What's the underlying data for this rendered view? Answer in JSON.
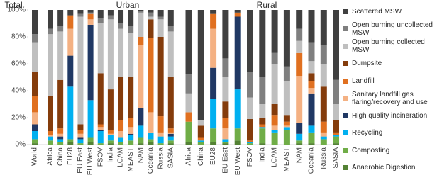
{
  "chart_data": {
    "type": "bar",
    "stacked": true,
    "ylim": [
      0,
      100
    ],
    "yticks": [
      {
        "value": 0,
        "label": "0%"
      },
      {
        "value": 20,
        "label": "20%"
      },
      {
        "value": 40,
        "label": "40%"
      },
      {
        "value": 60,
        "label": "60%"
      },
      {
        "value": 80,
        "label": "80%"
      },
      {
        "value": 100,
        "label": "100%"
      }
    ],
    "series": [
      {
        "name": "Anaerobic Digestion",
        "color": "#548235"
      },
      {
        "name": "Composting",
        "color": "#70ad47"
      },
      {
        "name": "Recycling",
        "color": "#00b0f0"
      },
      {
        "name": "High quality incineration",
        "color": "#203864"
      },
      {
        "name": "Sanitary landfill gas flaring/recovery and use",
        "color": "#f4b183"
      },
      {
        "name": "Landfill",
        "color": "#e07020"
      },
      {
        "name": "Dumpsite",
        "color": "#843c0c"
      },
      {
        "name": "Open burning collected MSW",
        "color": "#bfbfbf"
      },
      {
        "name": "Open burning uncollected MSW",
        "color": "#7f7f7f"
      },
      {
        "name": "Scattered MSW",
        "color": "#404040"
      }
    ],
    "groups": [
      {
        "name": "Total",
        "categories": [
          "World"
        ],
        "values": [
          [
            1
          ],
          [
            3
          ],
          [
            6
          ],
          [
            5
          ],
          [
            9
          ],
          [
            12
          ],
          [
            18
          ],
          [
            22
          ],
          [
            6
          ],
          [
            18
          ]
        ]
      },
      {
        "name": "Urban",
        "categories": [
          "Africa",
          "China",
          "EU28",
          "EU East",
          "EU West",
          "FSOV",
          "India",
          "LCAM",
          "MEAST",
          "NAM",
          "Oceania",
          "Russia",
          "SASIA"
        ],
        "values": [
          [
            0,
            0,
            2,
            0,
            2,
            0,
            1,
            0,
            0,
            1,
            2,
            0,
            1
          ],
          [
            3,
            2,
            2,
            1,
            3,
            1,
            2,
            2,
            3,
            4,
            2,
            1,
            2
          ],
          [
            3,
            2,
            39,
            3,
            28,
            9,
            4,
            3,
            4,
            9,
            5,
            5,
            3
          ],
          [
            0,
            2,
            23,
            1,
            56,
            1,
            0,
            0,
            1,
            13,
            0,
            0,
            2
          ],
          [
            1,
            2,
            20,
            3,
            4,
            2,
            1,
            5,
            5,
            47,
            15,
            3,
            1
          ],
          [
            3,
            4,
            10,
            3,
            4,
            2,
            3,
            8,
            7,
            6,
            55,
            12,
            3
          ],
          [
            26,
            36,
            0,
            4,
            0,
            38,
            30,
            32,
            30,
            0,
            14,
            59,
            38
          ],
          [
            46,
            36,
            0,
            80,
            0,
            37,
            52,
            36,
            33,
            18,
            2,
            13,
            34
          ],
          [
            4,
            4,
            0,
            2,
            1,
            4,
            3,
            4,
            5,
            1,
            3,
            2,
            4
          ],
          [
            14,
            12,
            4,
            3,
            2,
            6,
            4,
            10,
            12,
            1,
            2,
            5,
            12
          ]
        ]
      },
      {
        "name": "Rural",
        "categories": [
          "Africa",
          "China",
          "EU28",
          "EU East",
          "EU West",
          "FSOV",
          "India",
          "LCAM",
          "MEAST",
          "NAM",
          "Oceania",
          "Russia",
          "SASIA"
        ],
        "values": [
          [
            2,
            0,
            2,
            1,
            3,
            0,
            1,
            0,
            0,
            1,
            1,
            0,
            1
          ],
          [
            15,
            2,
            10,
            1,
            9,
            1,
            11,
            9,
            11,
            2,
            8,
            4,
            5
          ],
          [
            0,
            1,
            22,
            2,
            29,
            1,
            1,
            2,
            2,
            5,
            5,
            2,
            1
          ],
          [
            0,
            0,
            23,
            0,
            54,
            0,
            0,
            0,
            0,
            8,
            24,
            0,
            0
          ],
          [
            0,
            0,
            29,
            8,
            0,
            0,
            0,
            3,
            1,
            35,
            4,
            3,
            0
          ],
          [
            7,
            2,
            11,
            8,
            3,
            1,
            2,
            8,
            3,
            17,
            5,
            8,
            2
          ],
          [
            0,
            9,
            0,
            12,
            0,
            16,
            5,
            8,
            5,
            0,
            6,
            26,
            9
          ],
          [
            14,
            4,
            0,
            18,
            0,
            16,
            10,
            30,
            25,
            9,
            9,
            17,
            12
          ],
          [
            14,
            0,
            0,
            14,
            0,
            19,
            20,
            8,
            11,
            9,
            14,
            14,
            18
          ],
          [
            48,
            82,
            3,
            36,
            2,
            46,
            50,
            32,
            42,
            14,
            24,
            26,
            52
          ]
        ]
      }
    ]
  }
}
